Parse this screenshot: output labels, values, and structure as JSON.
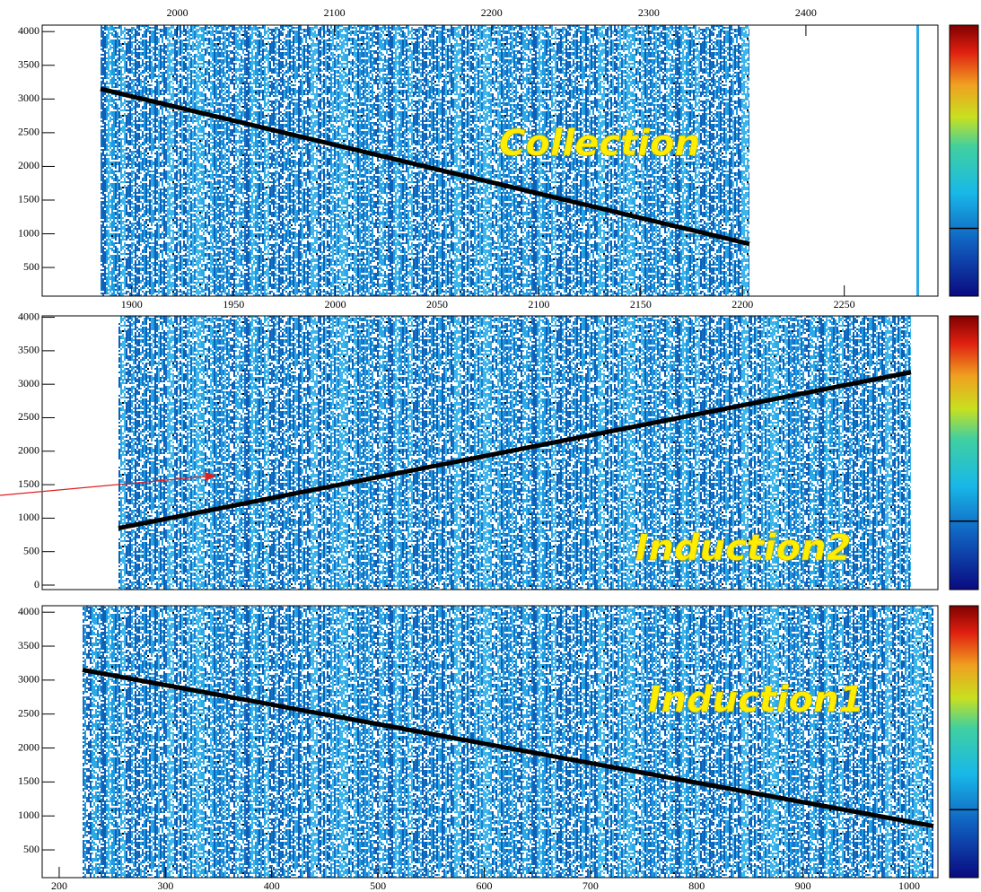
{
  "chart_data": [
    {
      "type": "heatmap",
      "annotation": "Collection",
      "ylim": [
        75,
        4096
      ],
      "yticks": [
        500,
        1000,
        1500,
        2000,
        2500,
        3000,
        3500,
        4000
      ],
      "xlim": [
        1856,
        2296
      ],
      "xticks": [
        1900,
        1950,
        2000,
        2050,
        2100,
        2150,
        2200,
        2250
      ],
      "x2lim": [
        1914,
        2484
      ],
      "x2ticks": [
        2000,
        2100,
        2200,
        2300,
        2400
      ],
      "track": {
        "color": "#000000",
        "values": [
          3150,
          850
        ]
      }
    },
    {
      "type": "heatmap",
      "annotation": "Induction2",
      "ylim": [
        -67,
        4021
      ],
      "yticks": [
        0,
        500,
        1000,
        1500,
        2000,
        2500,
        3000,
        3500,
        4000
      ],
      "track": {
        "color": "#000000",
        "values": [
          850,
          3180
        ]
      }
    },
    {
      "type": "heatmap",
      "annotation": "Induction1",
      "ylim": [
        91,
        4095
      ],
      "yticks": [
        500,
        1000,
        1500,
        2000,
        2500,
        3000,
        3500,
        4000
      ],
      "xlim": [
        184,
        1027
      ],
      "xticks": [
        200,
        300,
        400,
        500,
        600,
        700,
        800,
        900,
        1000
      ],
      "track": {
        "color": "#000000",
        "values": [
          3150,
          850
        ]
      }
    }
  ]
}
